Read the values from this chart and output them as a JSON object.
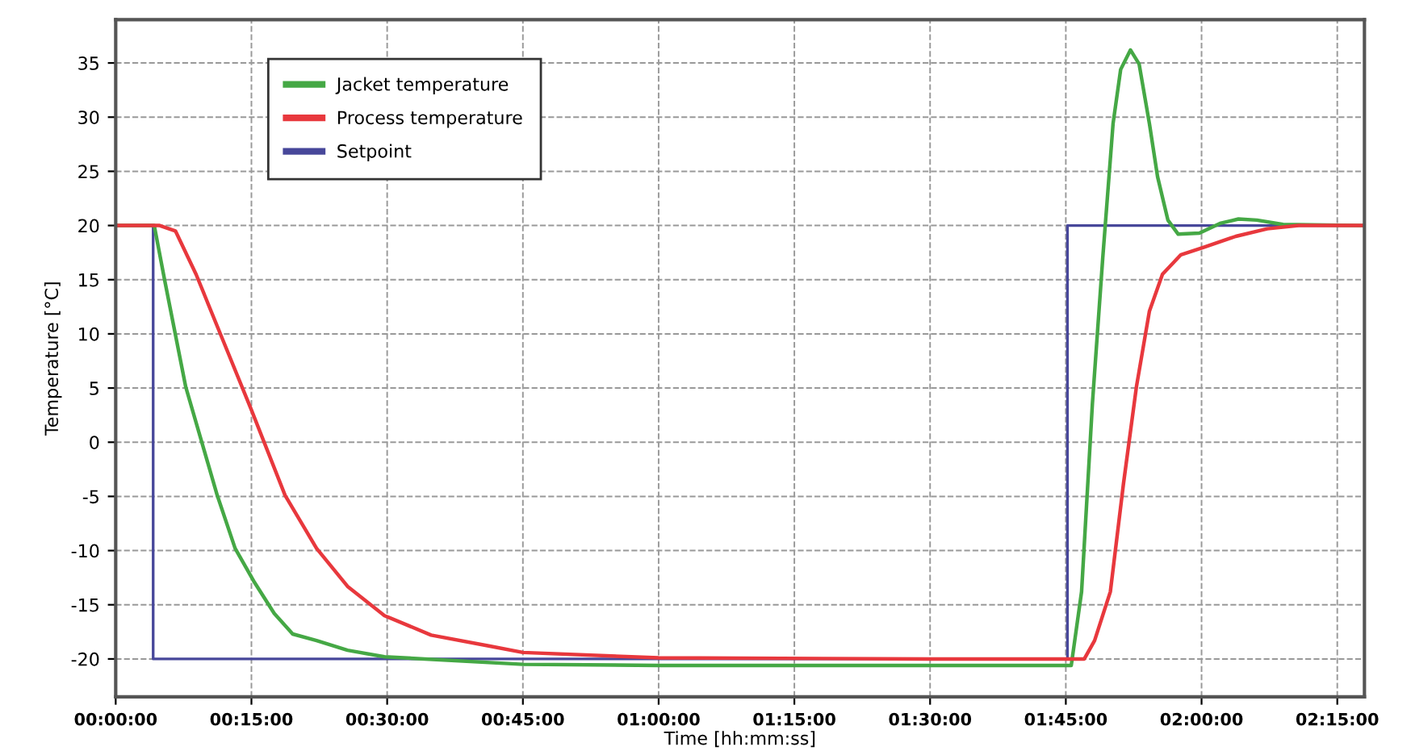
{
  "chart_data": {
    "type": "line",
    "xlabel": "Time [hh:mm:ss]",
    "ylabel": "Temperature [°C]",
    "xlim": [
      0,
      2.3
    ],
    "ylim": [
      -23.5,
      39
    ],
    "xticks": [
      {
        "value": 0,
        "label": "00:00:00"
      },
      {
        "value": 0.25,
        "label": "00:15:00"
      },
      {
        "value": 0.5,
        "label": "00:30:00"
      },
      {
        "value": 0.75,
        "label": "00:45:00"
      },
      {
        "value": 1,
        "label": "01:00:00"
      },
      {
        "value": 1.25,
        "label": "01:15:00"
      },
      {
        "value": 1.5,
        "label": "01:30:00"
      },
      {
        "value": 1.75,
        "label": "01:45:00"
      },
      {
        "value": 2,
        "label": "02:00:00"
      },
      {
        "value": 2.25,
        "label": "02:15:00"
      }
    ],
    "yticks": [
      -20,
      -15,
      -10,
      -5,
      0,
      5,
      10,
      15,
      20,
      25,
      30,
      35
    ],
    "grid": true,
    "legend": "top left",
    "marker": "none",
    "line_style": "solid",
    "series": [
      {
        "name": "Jacket temperature",
        "color": "#45a845",
        "x": [
          0,
          0.071,
          0.09,
          0.129,
          0.158,
          0.187,
          0.22,
          0.254,
          0.292,
          0.326,
          0.37,
          0.427,
          0.495,
          0.75,
          1.0,
          1.5,
          1.76,
          1.779,
          1.799,
          1.818,
          1.837,
          1.851,
          1.869,
          1.885,
          1.904,
          1.919,
          1.938,
          1.957,
          1.996,
          2.034,
          2.068,
          2.102,
          2.15,
          2.297
        ],
        "values": [
          20,
          20,
          15.0,
          5.1,
          0.1,
          -4.9,
          -9.8,
          -12.8,
          -15.8,
          -17.7,
          -18.3,
          -19.2,
          -19.8,
          -20.5,
          -20.6,
          -20.6,
          -20.6,
          -13.8,
          3.6,
          17.0,
          29.4,
          34.4,
          36.2,
          34.9,
          29.4,
          24.5,
          20.5,
          19.2,
          19.3,
          20.2,
          20.6,
          20.5,
          20.1,
          20
        ]
      },
      {
        "name": "Process temperature",
        "color": "#e8383d",
        "x": [
          0,
          0.081,
          0.11,
          0.148,
          0.196,
          0.249,
          0.312,
          0.37,
          0.427,
          0.495,
          0.581,
          0.687,
          0.75,
          1.0,
          1.5,
          1.784,
          1.803,
          1.832,
          1.856,
          1.88,
          1.904,
          1.928,
          1.962,
          2.005,
          2.063,
          2.121,
          2.179,
          2.297
        ],
        "values": [
          20,
          20,
          19.5,
          15.5,
          9.6,
          3.1,
          -4.9,
          -9.8,
          -13.3,
          -16.0,
          -17.8,
          -18.8,
          -19.4,
          -19.9,
          -20,
          -20,
          -18.3,
          -13.8,
          -3.9,
          5.1,
          12.1,
          15.5,
          17.3,
          18.0,
          19.0,
          19.7,
          20,
          20
        ]
      },
      {
        "name": "Setpoint",
        "type": "step",
        "color": "#47479a",
        "x": [
          0,
          0.069,
          1.753,
          2.297
        ],
        "values": [
          20,
          -20,
          20,
          20
        ]
      }
    ]
  }
}
